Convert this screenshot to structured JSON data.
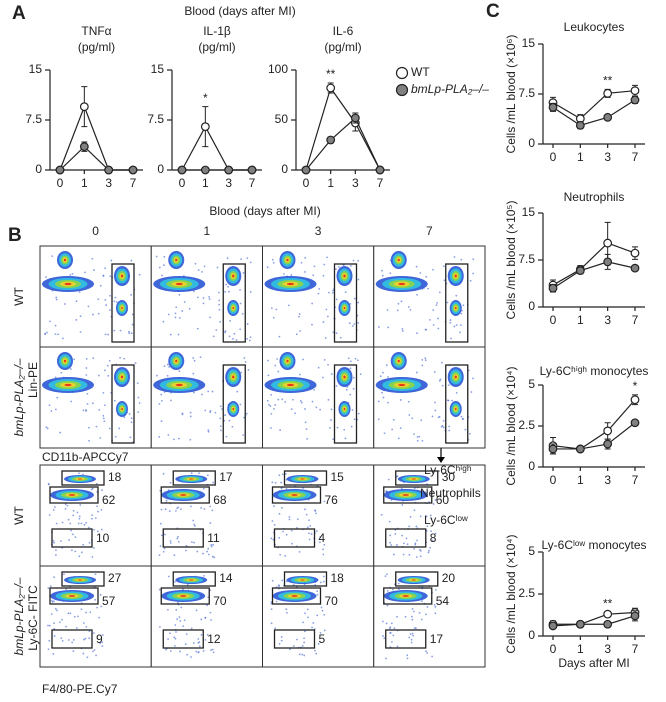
{
  "panel_labels": [
    "A",
    "B",
    "C"
  ],
  "chart_data": [
    {
      "type": "line",
      "header": "Blood (days after MI)",
      "title": "TNFα",
      "subtitle": "(pg/ml)",
      "categories": [
        "0",
        "1",
        "3",
        "7"
      ],
      "ylim": [
        0,
        15
      ],
      "yticks": [
        0,
        7.5,
        15
      ],
      "series": [
        {
          "name": "WT",
          "color": "#ffffff",
          "values": [
            0,
            9.5,
            0,
            0
          ],
          "errors": [
            null,
            3,
            null,
            null
          ]
        },
        {
          "name": "bmLp-PLA₂–/–",
          "color": "#808080",
          "values": [
            0,
            3.5,
            0,
            0
          ],
          "errors": [
            null,
            0.7,
            null,
            null
          ]
        }
      ]
    },
    {
      "type": "line",
      "title": "IL-1β",
      "subtitle": "(pg/ml)",
      "categories": [
        "0",
        "1",
        "3",
        "7"
      ],
      "ylim": [
        0,
        15
      ],
      "yticks": [
        0,
        7.5,
        15
      ],
      "annotations": [
        {
          "text": "*",
          "category": "1"
        }
      ],
      "series": [
        {
          "name": "WT",
          "color": "#ffffff",
          "values": [
            0,
            6.5,
            0,
            0
          ],
          "errors": [
            null,
            3,
            null,
            null
          ]
        },
        {
          "name": "bmLp-PLA₂–/–",
          "color": "#808080",
          "values": [
            0,
            0,
            0,
            0
          ],
          "errors": [
            null,
            null,
            null,
            null
          ]
        }
      ]
    },
    {
      "type": "line",
      "title": "IL-6",
      "subtitle": "(pg/ml)",
      "categories": [
        "0",
        "1",
        "3",
        "7"
      ],
      "ylim": [
        0,
        100
      ],
      "yticks": [
        0,
        50,
        100
      ],
      "legend": "right",
      "annotations": [
        {
          "text": "**",
          "category": "1"
        }
      ],
      "series": [
        {
          "name": "WT",
          "color": "#ffffff",
          "values": [
            0,
            82,
            47,
            0
          ],
          "errors": [
            null,
            5,
            8,
            null
          ]
        },
        {
          "name": "bmLp-PLA₂–/–",
          "color": "#808080",
          "values": [
            0,
            30,
            52,
            0
          ],
          "errors": [
            null,
            3,
            5,
            null
          ]
        }
      ]
    },
    {
      "type": "line",
      "title": "Leukocytes",
      "y_label": "Cells /mL blood (×10⁶)",
      "categories": [
        "0",
        "1",
        "3",
        "7"
      ],
      "ylim": [
        0,
        15
      ],
      "yticks": [
        0,
        7.5,
        15
      ],
      "annotations": [
        {
          "text": "**",
          "category": "3"
        }
      ],
      "series": [
        {
          "name": "WT",
          "color": "#ffffff",
          "values": [
            6.2,
            3.8,
            7.6,
            8.0
          ],
          "errors": [
            0.8,
            0.6,
            0.6,
            0.8
          ]
        },
        {
          "name": "bmLp-PLA₂–/–",
          "color": "#808080",
          "values": [
            5.5,
            2.8,
            4.0,
            6.6
          ],
          "errors": [
            0.6,
            0.5,
            0.3,
            0.5
          ]
        }
      ]
    },
    {
      "type": "line",
      "title": "Neutrophils",
      "y_label": "Cells /mL blood (×10⁵)",
      "categories": [
        "0",
        "1",
        "3",
        "7"
      ],
      "ylim": [
        0,
        15
      ],
      "yticks": [
        0,
        7.5,
        15
      ],
      "series": [
        {
          "name": "WT",
          "color": "#ffffff",
          "values": [
            3.5,
            6.0,
            10.2,
            8.6
          ],
          "errors": [
            0.8,
            0.6,
            3.3,
            1.0
          ]
        },
        {
          "name": "bmLp-PLA₂–/–",
          "color": "#808080",
          "values": [
            3.0,
            5.8,
            7.2,
            6.2
          ],
          "errors": [
            0.6,
            0.5,
            1.2,
            0.4
          ]
        }
      ]
    },
    {
      "type": "line",
      "title": "Ly-6Cʰⁱᵍʰ monocytes",
      "y_label": "Cells /mL blood (×10⁴)",
      "categories": [
        "0",
        "1",
        "3",
        "7"
      ],
      "ylim": [
        0,
        5
      ],
      "yticks": [
        0,
        2.5,
        5
      ],
      "annotations": [
        {
          "text": "*",
          "category": "7"
        }
      ],
      "series": [
        {
          "name": "WT",
          "color": "#ffffff",
          "values": [
            1.3,
            1.1,
            2.2,
            4.1
          ],
          "errors": [
            0.5,
            0.15,
            0.5,
            0.3
          ]
        },
        {
          "name": "bmLp-PLA₂–/–",
          "color": "#808080",
          "values": [
            1.1,
            1.1,
            1.4,
            2.7
          ],
          "errors": [
            0.3,
            0.15,
            0.3,
            0.1
          ]
        }
      ]
    },
    {
      "type": "line",
      "title": "Ly-6Cˡᵒʷ monocytes",
      "y_label": "Cells /mL blood (×10⁴)",
      "x_label": "Days after MI",
      "categories": [
        "0",
        "1",
        "3",
        "7"
      ],
      "ylim": [
        0,
        5
      ],
      "yticks": [
        0,
        2.5,
        5
      ],
      "annotations": [
        {
          "text": "**",
          "category": "3"
        }
      ],
      "series": [
        {
          "name": "WT",
          "color": "#ffffff",
          "values": [
            0.7,
            0.7,
            1.3,
            1.4
          ],
          "errors": [
            0.2,
            0.15,
            0.1,
            0.25
          ]
        },
        {
          "name": "bmLp-PLA₂–/–",
          "color": "#808080",
          "values": [
            0.6,
            0.7,
            0.7,
            1.2
          ],
          "errors": [
            0.1,
            0.1,
            0.05,
            0.3
          ]
        }
      ]
    }
  ],
  "flow": {
    "title": "Blood (days after MI)",
    "days": [
      "0",
      "1",
      "3",
      "7"
    ],
    "groups": [
      "WT",
      "bmLp-PLA₂–/–"
    ],
    "lin_axes": {
      "y": "Lin-PE",
      "x": "CD11b-APCCy7"
    },
    "ly6c_axes": {
      "y": "Ly-6C- FITC",
      "x": "F4/80-PE.Cy7"
    },
    "gate_names": [
      "Ly-6Cʰⁱᵍʰ",
      "Neutrophils",
      "Ly-6Cˡᵒʷ"
    ],
    "gates": [
      [
        [
          18,
          62,
          10
        ],
        [
          17,
          68,
          11
        ],
        [
          15,
          76,
          4
        ],
        [
          30,
          60,
          8
        ]
      ],
      [
        [
          27,
          57,
          9
        ],
        [
          14,
          70,
          12
        ],
        [
          18,
          70,
          5
        ],
        [
          20,
          54,
          17
        ]
      ]
    ]
  }
}
